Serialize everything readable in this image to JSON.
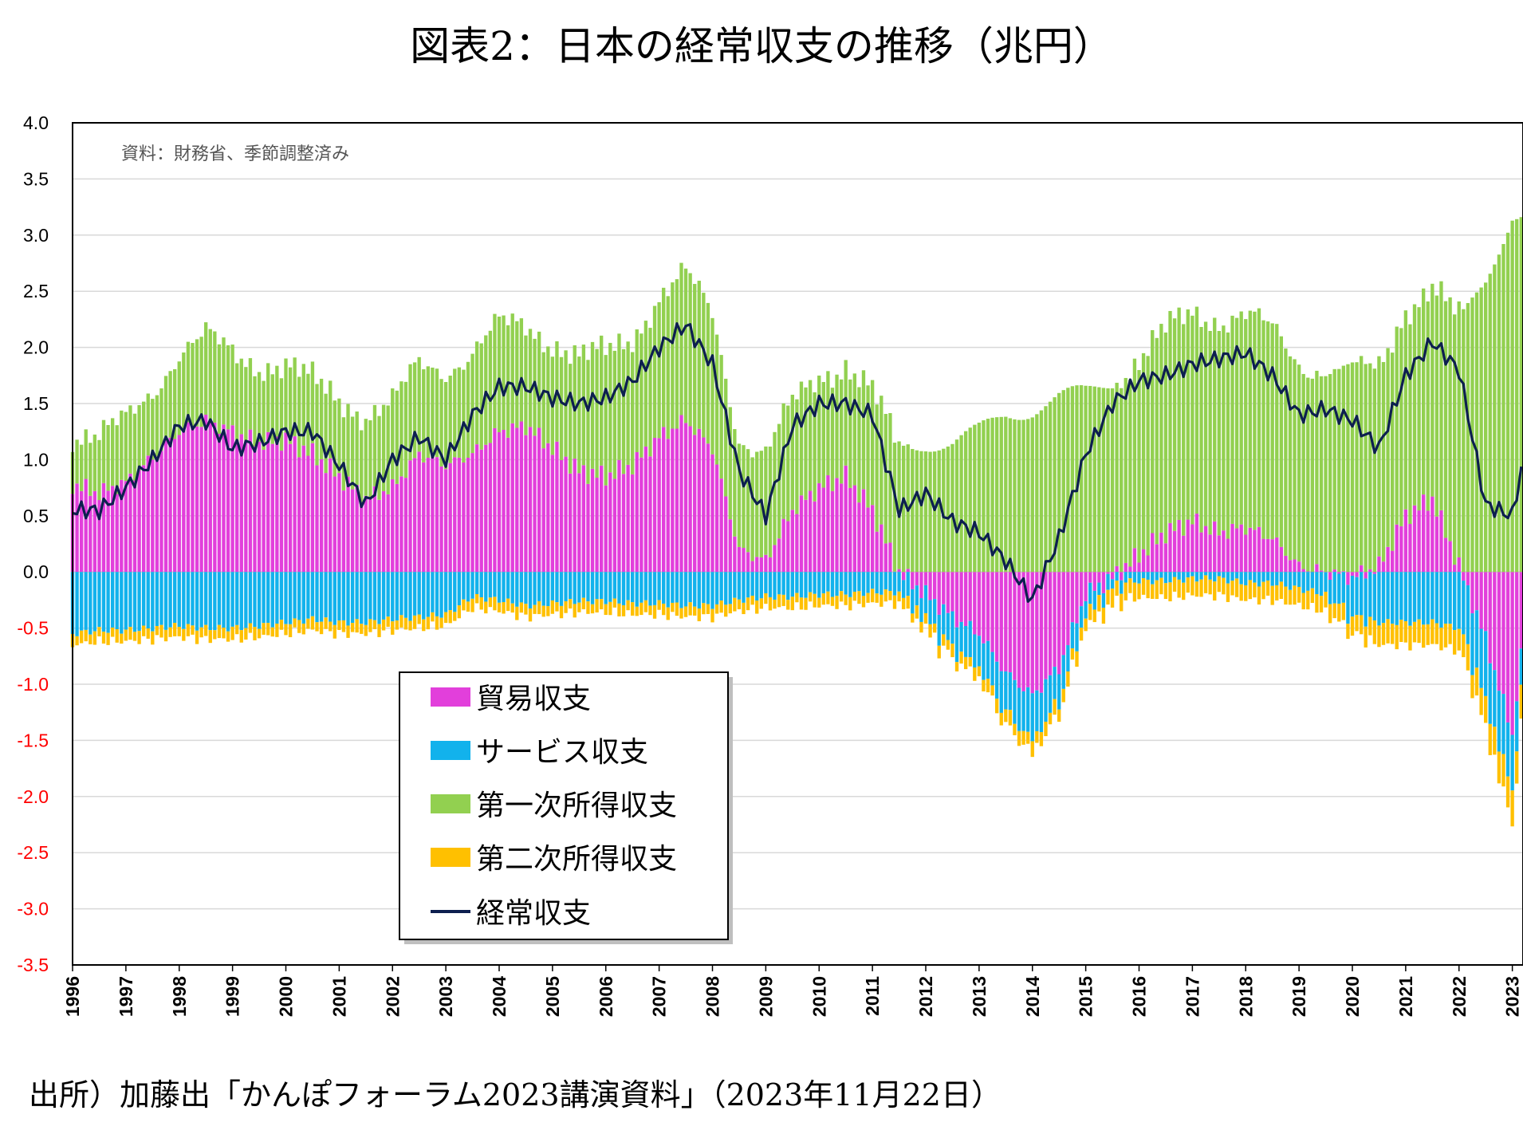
{
  "title": "図表2：日本の経常収支の推移（兆円）",
  "source": "出所）加藤出「かんぽフォーラム2023講演資料」（2023年11月22日）",
  "colors": {
    "trade": "#e23fdb",
    "services": "#12b2ec",
    "primary_income": "#92d050",
    "secondary_income": "#ffc000",
    "current_account": "#0d1f4f",
    "negative_tick": "#ff0000"
  },
  "chart_data": {
    "type": "bar",
    "stacked": true,
    "annotation": "資料：財務省、季節調整済み",
    "x_tick_labels": [
      "1996",
      "1997",
      "1998",
      "1999",
      "2000",
      "2001",
      "2002",
      "2003",
      "2004",
      "2005",
      "2006",
      "2007",
      "2008",
      "2009",
      "2010",
      "2011",
      "2012",
      "2013",
      "2014",
      "2015",
      "2016",
      "2017",
      "2018",
      "2019",
      "2020",
      "2021",
      "2022",
      "2023"
    ],
    "y_tick_labels": [
      "4.0",
      "3.5",
      "3.0",
      "2.5",
      "2.0",
      "1.5",
      "1.0",
      "0.5",
      "0.0",
      "-0.5",
      "-1.0",
      "-1.5",
      "-2.0",
      "-2.5",
      "-3.0",
      "-3.5"
    ],
    "ylim": [
      -3.5,
      4.0
    ],
    "xlim": [
      1996.0,
      2023.2
    ],
    "grid": true,
    "legend_position": "lower-left",
    "x_anchors": [
      1996.0,
      1996.5,
      1997.0,
      1997.5,
      1998.0,
      1998.5,
      1999.0,
      1999.5,
      2000.0,
      2000.5,
      2001.0,
      2001.5,
      2002.0,
      2002.5,
      2003.0,
      2003.5,
      2004.0,
      2004.5,
      2005.0,
      2005.5,
      2006.0,
      2006.5,
      2007.0,
      2007.5,
      2008.0,
      2008.5,
      2009.0,
      2009.5,
      2010.0,
      2010.5,
      2011.0,
      2011.5,
      2012.0,
      2012.5,
      2013.0,
      2013.5,
      2014.0,
      2014.5,
      2015.0,
      2015.5,
      2016.0,
      2016.5,
      2017.0,
      2017.5,
      2018.0,
      2018.5,
      2019.0,
      2019.5,
      2020.0,
      2020.5,
      2021.0,
      2021.5,
      2022.0,
      2022.5,
      2023.0,
      2023.2
    ],
    "series": [
      {
        "name": "貿易収支",
        "key": "trade",
        "values": [
          0.78,
          0.7,
          0.8,
          1.02,
          1.25,
          1.35,
          1.25,
          1.15,
          1.18,
          1.05,
          0.85,
          0.65,
          0.75,
          1.05,
          0.95,
          1.05,
          1.25,
          1.3,
          1.1,
          0.9,
          0.85,
          0.95,
          1.2,
          1.35,
          1.1,
          0.2,
          0.1,
          0.55,
          0.75,
          0.85,
          0.55,
          0.0,
          -0.2,
          -0.4,
          -0.55,
          -0.9,
          -1.1,
          -0.85,
          -0.2,
          -0.05,
          0.15,
          0.35,
          0.45,
          0.35,
          0.4,
          0.3,
          0.05,
          0.0,
          -0.05,
          0.05,
          0.5,
          0.65,
          0.05,
          -0.6,
          -1.45,
          -0.6
        ]
      },
      {
        "name": "サービス収支",
        "key": "services",
        "values": [
          -0.55,
          -0.52,
          -0.52,
          -0.5,
          -0.48,
          -0.5,
          -0.5,
          -0.48,
          -0.45,
          -0.42,
          -0.45,
          -0.45,
          -0.42,
          -0.4,
          -0.38,
          -0.22,
          -0.25,
          -0.3,
          -0.28,
          -0.26,
          -0.26,
          -0.28,
          -0.28,
          -0.3,
          -0.3,
          -0.25,
          -0.22,
          -0.22,
          -0.2,
          -0.2,
          -0.18,
          -0.18,
          -0.22,
          -0.28,
          -0.3,
          -0.35,
          -0.4,
          -0.3,
          -0.18,
          -0.1,
          -0.08,
          -0.08,
          -0.06,
          -0.06,
          -0.1,
          -0.1,
          -0.15,
          -0.2,
          -0.35,
          -0.45,
          -0.45,
          -0.45,
          -0.5,
          -0.55,
          -0.5,
          -0.3
        ]
      },
      {
        "name": "第一次所得収支",
        "key": "primary_income",
        "values": [
          0.45,
          0.5,
          0.55,
          0.6,
          0.7,
          0.75,
          0.7,
          0.7,
          0.65,
          0.65,
          0.7,
          0.75,
          0.75,
          0.8,
          0.85,
          0.9,
          0.95,
          0.9,
          0.95,
          1.0,
          1.1,
          1.15,
          1.25,
          1.3,
          1.2,
          1.0,
          0.95,
          0.95,
          1.0,
          1.0,
          1.05,
          1.1,
          1.15,
          1.15,
          1.25,
          1.4,
          1.45,
          1.55,
          1.6,
          1.7,
          1.75,
          1.8,
          1.85,
          1.9,
          1.9,
          1.85,
          1.8,
          1.8,
          1.8,
          1.75,
          1.85,
          1.9,
          2.2,
          2.6,
          3.2,
          3.2
        ]
      },
      {
        "name": "第二次所得収支",
        "key": "secondary_income",
        "values": [
          -0.1,
          -0.1,
          -0.1,
          -0.1,
          -0.1,
          -0.1,
          -0.1,
          -0.1,
          -0.1,
          -0.1,
          -0.1,
          -0.1,
          -0.1,
          -0.1,
          -0.1,
          -0.1,
          -0.1,
          -0.1,
          -0.1,
          -0.1,
          -0.1,
          -0.1,
          -0.1,
          -0.1,
          -0.1,
          -0.1,
          -0.1,
          -0.1,
          -0.1,
          -0.1,
          -0.1,
          -0.1,
          -0.1,
          -0.1,
          -0.1,
          -0.12,
          -0.12,
          -0.12,
          -0.12,
          -0.15,
          -0.15,
          -0.15,
          -0.15,
          -0.15,
          -0.15,
          -0.15,
          -0.15,
          -0.15,
          -0.15,
          -0.2,
          -0.2,
          -0.2,
          -0.2,
          -0.25,
          -0.3,
          -0.3
        ]
      },
      {
        "name": "経常収支",
        "key": "current_account",
        "type": "line",
        "values": [
          0.55,
          0.55,
          0.75,
          1.0,
          1.3,
          1.35,
          1.1,
          1.15,
          1.25,
          1.25,
          0.95,
          0.6,
          1.0,
          1.2,
          1.0,
          1.4,
          1.65,
          1.65,
          1.55,
          1.5,
          1.55,
          1.7,
          2.0,
          2.2,
          1.85,
          0.9,
          0.5,
          1.3,
          1.5,
          1.5,
          1.4,
          0.55,
          0.7,
          0.45,
          0.35,
          0.1,
          -0.25,
          0.3,
          1.05,
          1.5,
          1.7,
          1.75,
          1.85,
          1.9,
          1.95,
          1.75,
          1.4,
          1.45,
          1.35,
          1.1,
          1.75,
          2.05,
          1.8,
          0.6,
          0.5,
          1.0
        ]
      }
    ]
  }
}
